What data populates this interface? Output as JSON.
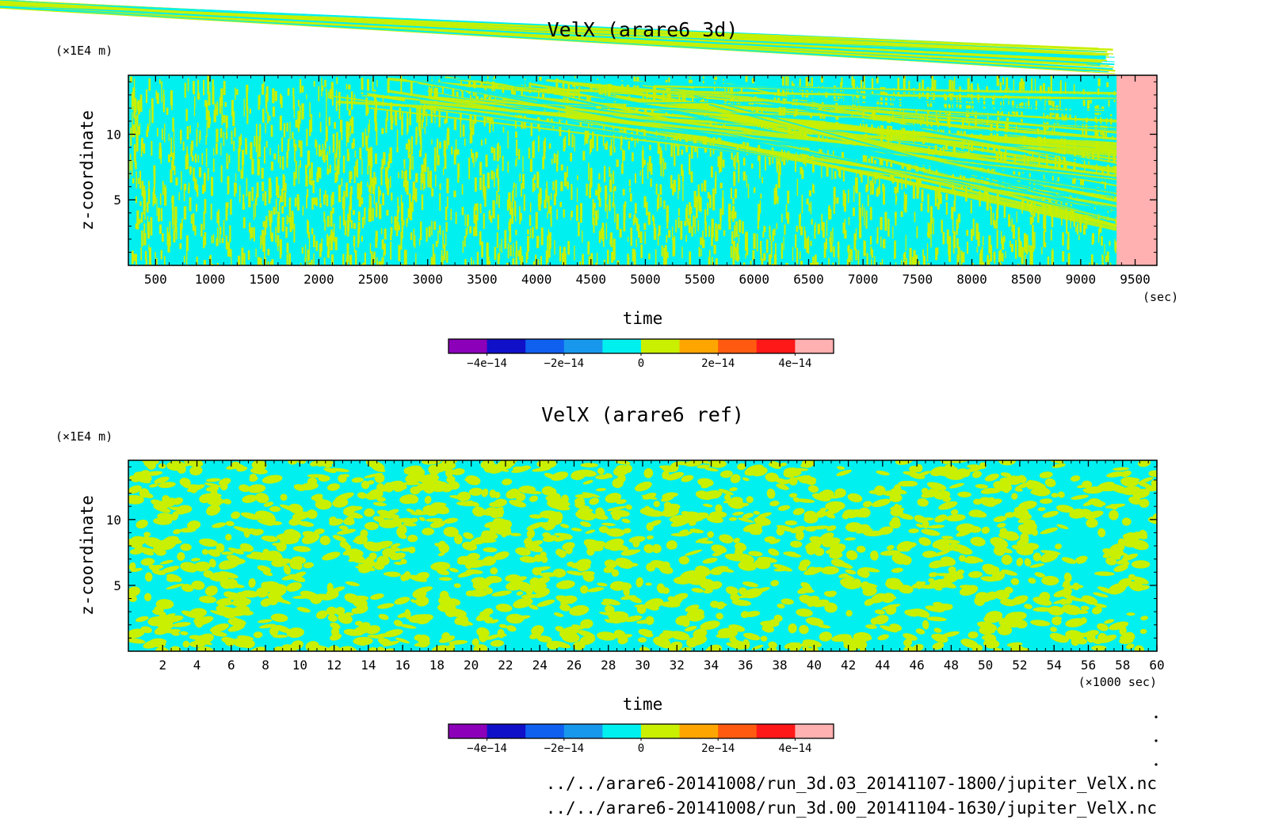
{
  "chart_data": [
    {
      "type": "heatmap",
      "title": "VelX (arare6 3d)",
      "xlabel": "time",
      "ylabel": "z-coordinate",
      "x_unit": "(sec)",
      "y_unit": "(×1E4 m)",
      "xlim": [
        250,
        9700
      ],
      "ylim": [
        0,
        14.5
      ],
      "x_ticks": [
        500,
        1000,
        1500,
        2000,
        2500,
        3000,
        3500,
        4000,
        4500,
        5000,
        5500,
        6000,
        6500,
        7000,
        7500,
        8000,
        8500,
        9000,
        9500
      ],
      "y_ticks": [
        5,
        10
      ],
      "data_end_time": 9330,
      "pattern": "noisy field with diagonal streaks emerging after ~3000 s",
      "grid": false,
      "colorbar": {
        "colors": [
          "#8B00B8",
          "#1010C8",
          "#1060F0",
          "#1898EC",
          "#00F0F0",
          "#C8F000",
          "#FFA500",
          "#FF5A10",
          "#FF1818",
          "#FFB0B0"
        ],
        "tick_labels": [
          "−4e−14",
          "−2e−14",
          "0",
          "2e−14",
          "4e−14"
        ],
        "tick_values": [
          -4e-14,
          -2e-14,
          0,
          2e-14,
          4e-14
        ],
        "range": [
          -5e-14,
          5e-14
        ]
      }
    },
    {
      "type": "heatmap",
      "title": "VelX (arare6 ref)",
      "xlabel": "time",
      "ylabel": "z-coordinate",
      "x_unit": "(×1000 sec)",
      "y_unit": "(×1E4 m)",
      "xlim": [
        0,
        60
      ],
      "ylim": [
        0,
        14.5
      ],
      "x_ticks": [
        2,
        4,
        6,
        8,
        10,
        12,
        14,
        16,
        18,
        20,
        22,
        24,
        26,
        28,
        30,
        32,
        34,
        36,
        38,
        40,
        42,
        44,
        46,
        48,
        50,
        52,
        54,
        56,
        58,
        60
      ],
      "y_ticks": [
        5,
        10
      ],
      "pattern": "blobby noise of cyan and yellow-green",
      "grid": false,
      "colorbar": {
        "colors": [
          "#8B00B8",
          "#1010C8",
          "#1060F0",
          "#1898EC",
          "#00F0F0",
          "#C8F000",
          "#FFA500",
          "#FF5A10",
          "#FF1818",
          "#FFB0B0"
        ],
        "tick_labels": [
          "−4e−14",
          "−2e−14",
          "0",
          "2e−14",
          "4e−14"
        ],
        "tick_values": [
          -4e-14,
          -2e-14,
          0,
          2e-14,
          4e-14
        ],
        "range": [
          -5e-14,
          5e-14
        ]
      }
    }
  ],
  "footer": {
    "paths": [
      "../../arare6-20141008/run_3d.03_20141107-1800/jupiter_VelX.nc",
      "../../arare6-20141008/run_3d.00_20141104-1630/jupiter_VelX.nc"
    ]
  }
}
